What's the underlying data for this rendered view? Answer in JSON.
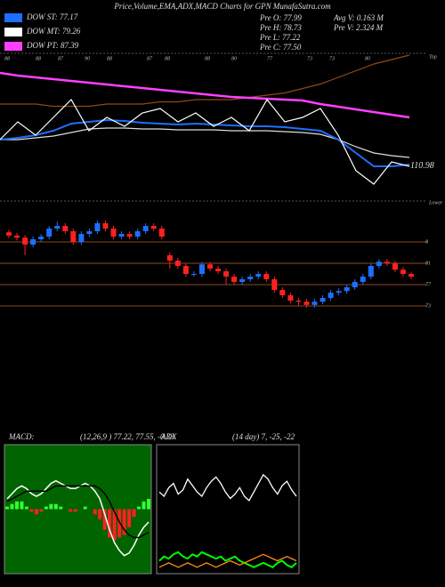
{
  "header": {
    "title": "Price,Volume,EMA,ADX,MACD Charts for GPN MunafaSutra.com",
    "legend": [
      {
        "text": "DOW ST: 77.17",
        "color": "#1e6fff"
      },
      {
        "text": "DOW MT: 79.26",
        "color": "#ffffff"
      },
      {
        "text": "DOW PT: 87.39",
        "color": "#ff40ff"
      }
    ],
    "stats": [
      "Pre O: 77.99",
      "Pre H: 78.73",
      "Pre L: 77.22",
      "Pre C: 77.50",
      "Avg V: 0.163 M",
      "Pre V: 2.324 M"
    ]
  },
  "chart_data": [
    {
      "type": "line",
      "ylim": [
        100,
        160
      ],
      "last_price": 110.98,
      "corner_label": "Top",
      "top_labels": [
        "88",
        "88",
        "87",
        "90",
        "88",
        "87",
        "88",
        "88",
        "80",
        "77",
        "73",
        "73",
        "80"
      ],
      "series": [
        {
          "color": "#8b4a1c",
          "values": [
            138,
            138,
            138,
            137,
            137,
            137,
            138,
            138,
            138,
            139,
            139,
            140,
            140,
            140,
            141,
            142,
            143,
            145,
            147,
            150,
            153,
            156,
            158,
            160
          ]
        },
        {
          "name": "DOW PT",
          "color": "#ff40ff",
          "values": [
            152,
            150.8,
            150,
            149.2,
            148.4,
            147.6,
            146.8,
            146,
            145.2,
            144.4,
            143.6,
            142.8,
            142,
            141.2,
            140.8,
            140.4,
            140,
            139.6,
            138,
            136.8,
            135.6,
            134.4,
            133.2,
            132
          ]
        },
        {
          "name": "DOW MT",
          "color": "#dddddd",
          "values": [
            122,
            122,
            122.8,
            123.6,
            125.2,
            126.8,
            127.2,
            127.2,
            126.8,
            126.8,
            126.4,
            126.4,
            126.4,
            126,
            126,
            126,
            125.6,
            125.2,
            124.4,
            122,
            118.8,
            116,
            114.8,
            114
          ]
        },
        {
          "name": "DOW ST",
          "color": "#1e6fff",
          "values": [
            122,
            122.8,
            124,
            126,
            129.2,
            130,
            130.8,
            130.4,
            129.6,
            129.2,
            128.8,
            129.2,
            128.8,
            128.4,
            128,
            128,
            127.6,
            126.8,
            126,
            122,
            116,
            110,
            110,
            110.8
          ]
        },
        {
          "name": "Price",
          "color": "#ffffff",
          "values": [
            122,
            130,
            124,
            132,
            140,
            126,
            132,
            128,
            134,
            136,
            130,
            134,
            128,
            132,
            126,
            140,
            130,
            132,
            136,
            124,
            108,
            102,
            112,
            110
          ]
        }
      ]
    },
    {
      "type": "candlestick",
      "ylim": [
        68.67,
        93.67
      ],
      "corner_label": "Lower",
      "up_color": "#1e6fff",
      "down_color": "#ff2020",
      "line_color": "#8b4a1c",
      "yticks": [
        {
          "value": 85,
          "label": "8"
        },
        81,
        77,
        73
      ],
      "open": [
        86.8,
        86.2,
        85.8,
        84.5,
        85.5,
        86.0,
        87.5,
        88.0,
        87.0,
        85.0,
        86.5,
        87.0,
        88.5,
        87.5,
        86.0,
        86.5,
        86.0,
        87.0,
        88.0,
        87.5,
        82.5,
        81.5,
        80.5,
        79.0,
        79.0,
        80.8,
        80.0,
        79.5,
        78.5,
        77.5,
        78.0,
        78.5,
        79.0,
        78.0,
        76.0,
        75.0,
        74.0,
        73.8,
        73.2,
        73.8,
        74.5,
        75.5,
        75.8,
        76.5,
        77.5,
        78.5,
        80.5,
        81.3,
        81.0,
        79.8,
        79.0
      ],
      "high": [
        87.3,
        86.7,
        86.3,
        86.0,
        86.5,
        88.0,
        88.8,
        88.5,
        87.5,
        87.0,
        87.5,
        89.0,
        89.0,
        88.0,
        87.0,
        87.0,
        87.5,
        88.5,
        88.5,
        88.0,
        83.0,
        82.0,
        81.0,
        79.5,
        81.3,
        81.3,
        80.5,
        80.0,
        79.0,
        78.5,
        79.0,
        79.5,
        79.5,
        78.5,
        76.5,
        75.5,
        74.5,
        74.3,
        74.3,
        75.0,
        76.0,
        76.3,
        77.0,
        78.0,
        79.0,
        81.0,
        81.8,
        81.8,
        81.5,
        80.3,
        79.3
      ],
      "low": [
        85.7,
        85.3,
        82.5,
        84.0,
        85.0,
        85.5,
        87.0,
        86.5,
        84.5,
        84.5,
        86.0,
        86.5,
        87.0,
        85.5,
        85.5,
        85.5,
        85.5,
        86.5,
        87.0,
        85.5,
        80.0,
        80.0,
        78.5,
        78.5,
        78.5,
        79.5,
        79.0,
        77.0,
        77.0,
        77.0,
        77.5,
        78.0,
        77.5,
        75.5,
        74.5,
        73.5,
        73.0,
        72.7,
        72.7,
        73.3,
        74.0,
        75.0,
        75.3,
        76.0,
        77.0,
        78.0,
        80.0,
        80.5,
        79.3,
        78.5,
        78.0
      ],
      "close": [
        86.2,
        85.8,
        84.5,
        85.5,
        86.0,
        87.5,
        88.0,
        87.0,
        85.0,
        86.5,
        87.0,
        88.5,
        87.5,
        86.0,
        86.5,
        86.0,
        87.0,
        88.0,
        87.5,
        86.0,
        81.5,
        80.5,
        79.0,
        79.0,
        80.8,
        80.0,
        79.5,
        78.5,
        77.5,
        78.0,
        78.5,
        79.0,
        78.0,
        76.0,
        75.0,
        74.0,
        73.8,
        73.2,
        73.8,
        74.5,
        75.5,
        75.8,
        76.5,
        77.5,
        78.5,
        80.5,
        81.3,
        81.0,
        79.8,
        79.0,
        78.5
      ]
    },
    {
      "type": "macd",
      "title": "MACD:",
      "subtitle": "(12,26,9 ) 77.22, 77.55, -0.33",
      "background": "#006400",
      "ylim": [
        -2.5,
        2.5
      ],
      "series": [
        {
          "name": "MACD",
          "color": "#ffffff",
          "values": [
            0.4,
            0.6,
            0.8,
            0.9,
            0.8,
            0.6,
            0.5,
            0.6,
            0.8,
            1.0,
            1.1,
            1.0,
            0.9,
            0.8,
            0.8,
            0.9,
            1.0,
            0.9,
            0.7,
            0.4,
            -0.2,
            -0.8,
            -1.3,
            -1.6,
            -1.8,
            -1.7,
            -1.4,
            -1.0,
            -0.7,
            -0.5
          ]
        },
        {
          "name": "Signal",
          "color": "#000000",
          "values": [
            0.3,
            0.4,
            0.5,
            0.6,
            0.7,
            0.7,
            0.7,
            0.7,
            0.7,
            0.8,
            0.9,
            0.9,
            0.9,
            0.9,
            0.9,
            0.9,
            0.9,
            0.9,
            0.9,
            0.8,
            0.6,
            0.3,
            -0.1,
            -0.5,
            -0.8,
            -1.0,
            -1.1,
            -1.1,
            -1.0,
            -0.9
          ]
        }
      ],
      "histogram": [
        0.1,
        0.2,
        0.3,
        0.3,
        0.1,
        -0.1,
        -0.2,
        -0.1,
        0.1,
        0.2,
        0.2,
        0.1,
        0,
        -0.1,
        -0.1,
        0,
        0.1,
        0,
        -0.2,
        -0.4,
        -0.8,
        -1.1,
        -1.2,
        -1.1,
        -1.0,
        -0.7,
        -0.3,
        0.1,
        0.3,
        0.4
      ],
      "up_color": "#33ff33",
      "down_color": "#ff2020"
    },
    {
      "type": "adx",
      "title": "ADX",
      "subtitle": "(14 day) 7, -25, -22",
      "background": "#000000",
      "ylim": [
        0,
        60
      ],
      "series": [
        {
          "name": "ADX",
          "color": "#ffffff",
          "values": [
            38,
            36,
            40,
            42,
            37,
            39,
            44,
            41,
            38,
            36,
            40,
            43,
            45,
            42,
            38,
            35,
            37,
            40,
            36,
            34,
            38,
            42,
            46,
            44,
            40,
            37,
            41,
            43,
            39,
            36
          ]
        },
        {
          "name": "+DI",
          "color": "#00ff00",
          "values": [
            6,
            8,
            7,
            9,
            10,
            8,
            7,
            9,
            8,
            10,
            9,
            8,
            7,
            8,
            6,
            7,
            8,
            6,
            5,
            4,
            3,
            4,
            5,
            4,
            3,
            5,
            6,
            4,
            3,
            5
          ]
        },
        {
          "name": "-DI",
          "color": "#ff8c1a",
          "values": [
            3,
            4,
            5,
            4,
            3,
            4,
            5,
            4,
            3,
            4,
            5,
            4,
            3,
            4,
            5,
            6,
            5,
            4,
            5,
            6,
            7,
            8,
            9,
            8,
            7,
            6,
            7,
            8,
            7,
            6
          ]
        }
      ]
    }
  ]
}
